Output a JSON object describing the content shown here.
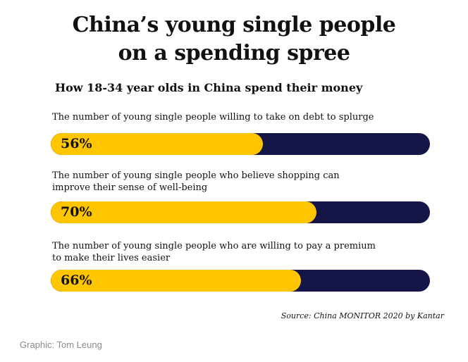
{
  "chart_data": {
    "type": "bar",
    "title": "China’s young single people on a spending spree",
    "subtitle": "How 18-34 year olds in China spend their money",
    "categories": [
      "The number of young single people willing to take on debt to splurge",
      "The number of young single people who believe shopping can improve their sense of well-being",
      "The number of young single people who are willing to pay a premium to make their lives easier"
    ],
    "values": [
      56,
      70,
      66
    ],
    "value_labels": [
      "56%",
      "70%",
      "66%"
    ],
    "ylim": [
      0,
      100
    ],
    "grid": false
  },
  "title_lines": [
    "China’s young single people",
    "on a spending spree"
  ],
  "label_lines": [
    [
      "The number of young single people willing to take on debt to splurge"
    ],
    [
      "The number of young single people who believe shopping can",
      "improve their sense of well-being"
    ],
    [
      "The number of young single people who are willing to pay a premium",
      "to make their lives easier"
    ]
  ],
  "source": "Source: China MONITOR 2020 by Kantar",
  "credit": "Graphic: Tom Leung",
  "colors": {
    "bar_fill": "#ffc600",
    "bar_track": "#151547",
    "text": "#111111",
    "credit": "#8a8a8a"
  }
}
